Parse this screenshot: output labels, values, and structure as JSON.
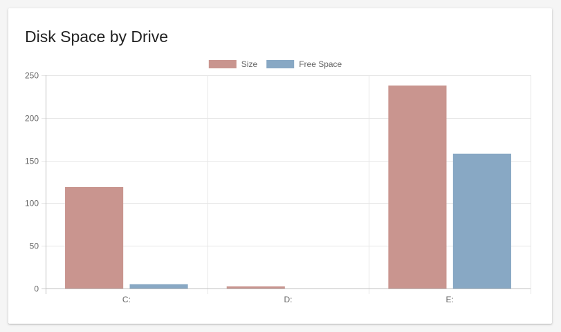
{
  "card": {
    "title": "Disk Space by Drive"
  },
  "chart_data": {
    "type": "bar",
    "title": "Disk Space by Drive",
    "xlabel": "",
    "ylabel": "",
    "categories": [
      "C:",
      "D:",
      "E:"
    ],
    "series": [
      {
        "name": "Size",
        "values": [
          119,
          2.5,
          238
        ],
        "color": "#c9958f"
      },
      {
        "name": "Free Space",
        "values": [
          5,
          0,
          158
        ],
        "color": "#88a8c4"
      }
    ],
    "ylim": [
      0,
      250
    ],
    "yticks": [
      "0",
      "50",
      "100",
      "150",
      "200",
      "250"
    ],
    "grid": true,
    "legend_position": "top-center"
  }
}
